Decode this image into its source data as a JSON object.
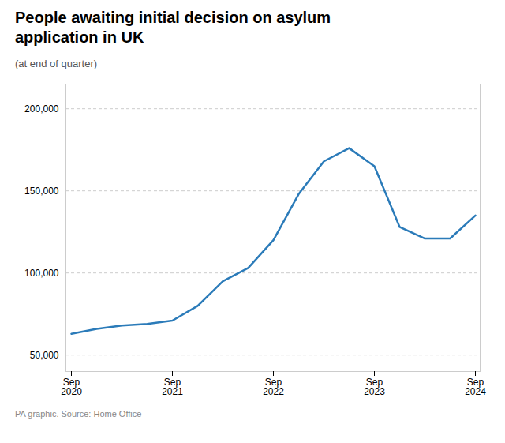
{
  "chart_data": {
    "type": "line",
    "title": "People awaiting initial decision on asylum\napplication in UK",
    "subtitle": "(at end of quarter)",
    "footnote": "PA graphic.  Source: Home Office",
    "categories": [
      "Sep\n2020",
      null,
      null,
      null,
      "Sep\n2021",
      null,
      null,
      null,
      "Sep\n2022",
      null,
      null,
      null,
      "Sep\n2023",
      null,
      null,
      null,
      "Sep\n2024"
    ],
    "values": [
      63000,
      66000,
      68000,
      69000,
      71000,
      80000,
      95000,
      103000,
      120000,
      148000,
      168000,
      176000,
      165000,
      128000,
      121000,
      121000,
      135000
    ],
    "color": "#2b7bb9",
    "ylim": [
      40000,
      215000
    ],
    "yticks": [
      {
        "value": 50000,
        "label": "50,000"
      },
      {
        "value": 100000,
        "label": "100,000"
      },
      {
        "value": 150000,
        "label": "150,000"
      },
      {
        "value": 200000,
        "label": "200,000"
      }
    ],
    "grid": true
  }
}
